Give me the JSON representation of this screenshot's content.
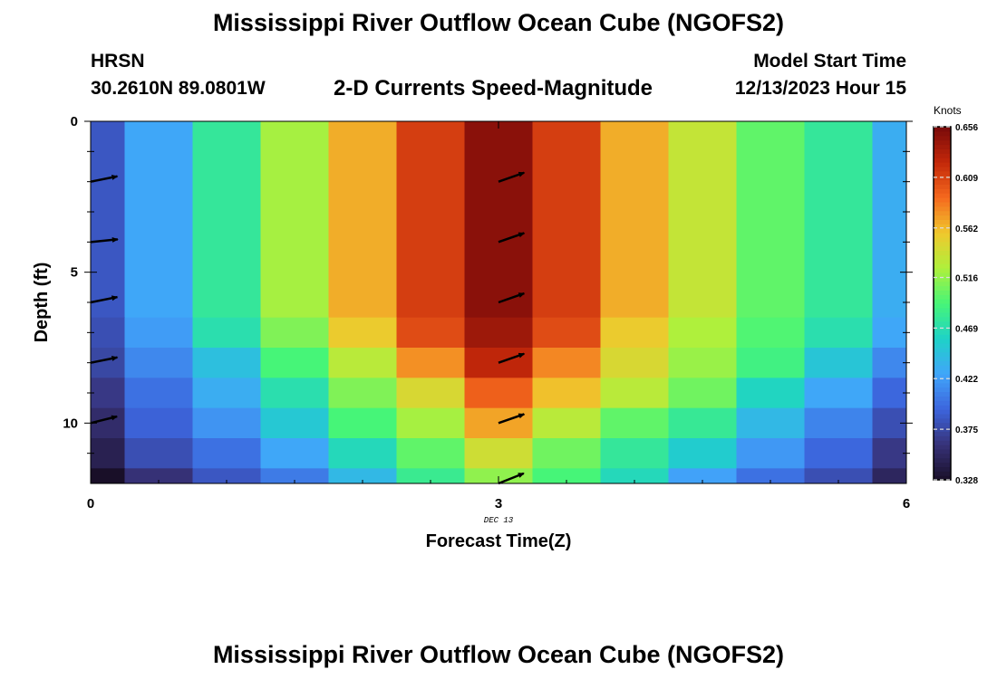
{
  "header": {
    "title": "Mississippi River Outflow Ocean Cube (NGOFS2)",
    "station": "HRSN",
    "coordinates": "30.2610N  89.0801W",
    "variable": "2-D Currents Speed-Magnitude",
    "model_start_label": "Model Start Time",
    "model_start_value": "12/13/2023 Hour 15"
  },
  "footer": {
    "title": "Mississippi River Outflow Ocean Cube (NGOFS2)"
  },
  "chart_data": {
    "type": "heatmap",
    "xlabel": "Forecast Time(Z)",
    "ylabel": "Depth (ft)",
    "xlim": [
      0,
      6
    ],
    "ylim": [
      12,
      0
    ],
    "x_ticks": [
      "0",
      "3",
      "6"
    ],
    "y_ticks": [
      "0",
      "5",
      "10"
    ],
    "date_label": "DEC 13",
    "x": [
      0,
      0.5,
      1,
      1.5,
      2,
      2.5,
      3,
      3.5,
      4,
      4.5,
      5,
      5.5,
      6
    ],
    "depth_bands": [
      [
        0,
        6.5
      ],
      [
        6.5,
        7.5
      ],
      [
        7.5,
        8.5
      ],
      [
        8.5,
        9.5
      ],
      [
        9.5,
        10.5
      ],
      [
        10.5,
        11.5
      ],
      [
        11.5,
        12
      ]
    ],
    "values": [
      [
        0.385,
        0.428,
        0.478,
        0.522,
        0.567,
        0.612,
        0.648,
        0.612,
        0.567,
        0.535,
        0.5,
        0.478,
        0.432
      ],
      [
        0.38,
        0.422,
        0.47,
        0.51,
        0.555,
        0.605,
        0.64,
        0.605,
        0.555,
        0.525,
        0.495,
        0.47,
        0.428
      ],
      [
        0.375,
        0.412,
        0.445,
        0.492,
        0.53,
        0.577,
        0.625,
        0.58,
        0.545,
        0.518,
        0.488,
        0.45,
        0.412
      ],
      [
        0.365,
        0.4,
        0.432,
        0.47,
        0.51,
        0.545,
        0.595,
        0.56,
        0.53,
        0.505,
        0.462,
        0.428,
        0.395
      ],
      [
        0.355,
        0.392,
        0.418,
        0.452,
        0.492,
        0.522,
        0.57,
        0.53,
        0.5,
        0.48,
        0.44,
        0.41,
        0.38
      ],
      [
        0.345,
        0.38,
        0.4,
        0.428,
        0.465,
        0.5,
        0.54,
        0.505,
        0.478,
        0.455,
        0.42,
        0.395,
        0.365
      ],
      [
        0.328,
        0.36,
        0.385,
        0.405,
        0.44,
        0.482,
        0.515,
        0.492,
        0.465,
        0.425,
        0.4,
        0.38,
        0.35
      ]
    ],
    "colorbar": {
      "label": "Knots",
      "min": 0.328,
      "max": 0.656,
      "ticks": [
        "0.656",
        "0.609",
        "0.562",
        "0.516",
        "0.469",
        "0.422",
        "0.375",
        "0.328"
      ]
    },
    "vectors": [
      {
        "x": 0,
        "depth": 2,
        "dx": 1,
        "dy": -0.2
      },
      {
        "x": 0,
        "depth": 4,
        "dx": 1,
        "dy": -0.1
      },
      {
        "x": 0,
        "depth": 6,
        "dx": 1,
        "dy": -0.2
      },
      {
        "x": 0,
        "depth": 8,
        "dx": 1,
        "dy": -0.2
      },
      {
        "x": 0,
        "depth": 10,
        "dx": 1,
        "dy": -0.25
      },
      {
        "x": 3,
        "depth": 2,
        "dx": 1,
        "dy": -0.35
      },
      {
        "x": 3,
        "depth": 4,
        "dx": 1,
        "dy": -0.35
      },
      {
        "x": 3,
        "depth": 6,
        "dx": 1,
        "dy": -0.35
      },
      {
        "x": 3,
        "depth": 8,
        "dx": 1,
        "dy": -0.35
      },
      {
        "x": 3,
        "depth": 10,
        "dx": 1,
        "dy": -0.35
      },
      {
        "x": 3,
        "depth": 12,
        "dx": 1,
        "dy": -0.4
      }
    ],
    "grid": false
  }
}
